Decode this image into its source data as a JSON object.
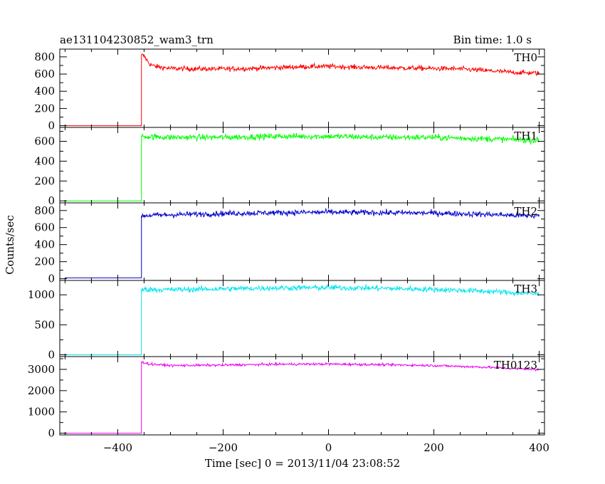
{
  "header": {
    "left_title": "ae131104230852_wam3_trn",
    "right_title": "Bin time: 1.0 s"
  },
  "chart_data": {
    "type": "line",
    "title": "ae131104230852_wam3_trn",
    "subtitle": "Bin time: 1.0 s",
    "xlabel": "Time [sec] 0 = 2013/11/04 23:08:52",
    "ylabel": "Counts/sec",
    "xlim": [
      -510,
      410
    ],
    "x_ticks": [
      -400,
      -200,
      0,
      200,
      400
    ],
    "x_tick_labels": [
      "−400",
      "−200",
      "0",
      "200",
      "400"
    ],
    "grid": false,
    "panels": [
      {
        "name": "TH0",
        "color": "#ff0000",
        "ylim": [
          -20,
          890
        ],
        "y_ticks": [
          0,
          200,
          400,
          600,
          800
        ],
        "y_tick_labels": [
          "0",
          "200",
          "400",
          "600",
          "800"
        ],
        "series": {
          "x": [
            -500,
            -355,
            -355,
            -350,
            -340,
            -330,
            -300,
            -250,
            -200,
            -150,
            -100,
            -50,
            0,
            50,
            100,
            150,
            200,
            250,
            300,
            350,
            400
          ],
          "y": [
            0,
            0,
            820,
            810,
            720,
            690,
            665,
            660,
            660,
            665,
            675,
            685,
            690,
            680,
            675,
            670,
            665,
            660,
            640,
            620,
            610
          ]
        },
        "noise": 28
      },
      {
        "name": "TH1",
        "color": "#00ff00",
        "ylim": [
          -20,
          740
        ],
        "y_ticks": [
          0,
          200,
          400,
          600
        ],
        "y_tick_labels": [
          "0",
          "200",
          "400",
          "600"
        ],
        "series": {
          "x": [
            -500,
            -355,
            -355,
            -300,
            -200,
            -100,
            0,
            100,
            200,
            300,
            400
          ],
          "y": [
            0,
            0,
            650,
            640,
            640,
            650,
            650,
            640,
            640,
            625,
            610
          ]
        },
        "noise": 30
      },
      {
        "name": "TH2",
        "color": "#0000cc",
        "ylim": [
          -20,
          890
        ],
        "y_ticks": [
          0,
          200,
          400,
          600,
          800
        ],
        "y_tick_labels": [
          "0",
          "200",
          "400",
          "600",
          "800"
        ],
        "series": {
          "x": [
            -500,
            -355,
            -355,
            -300,
            -200,
            -100,
            0,
            100,
            200,
            300,
            400
          ],
          "y": [
            10,
            10,
            740,
            750,
            765,
            775,
            780,
            775,
            770,
            755,
            735
          ]
        },
        "noise": 32
      },
      {
        "name": "TH3",
        "color": "#00e5ee",
        "ylim": [
          -30,
          1240
        ],
        "y_ticks": [
          0,
          500,
          1000
        ],
        "y_tick_labels": [
          "0",
          "500",
          "1000"
        ],
        "series": {
          "x": [
            -500,
            -355,
            -355,
            -300,
            -200,
            -100,
            0,
            100,
            200,
            300,
            400
          ],
          "y": [
            0,
            0,
            1090,
            1085,
            1100,
            1115,
            1120,
            1110,
            1090,
            1060,
            1010
          ]
        },
        "noise": 45
      },
      {
        "name": "TH0123",
        "color": "#ee00ee",
        "ylim": [
          -80,
          3600
        ],
        "y_ticks": [
          0,
          1000,
          2000,
          3000
        ],
        "y_tick_labels": [
          "0",
          "1000",
          "2000",
          "3000"
        ],
        "series": {
          "x": [
            -500,
            -355,
            -355,
            -340,
            -300,
            -200,
            -100,
            0,
            100,
            200,
            300,
            400
          ],
          "y": [
            0,
            0,
            3350,
            3250,
            3180,
            3200,
            3240,
            3250,
            3220,
            3180,
            3100,
            2980
          ]
        },
        "noise": 55
      }
    ]
  }
}
